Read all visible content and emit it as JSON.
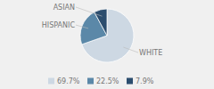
{
  "chart_data": {
    "type": "pie",
    "categories": [
      "WHITE",
      "HISPANIC",
      "ASIAN"
    ],
    "values": [
      69.7,
      22.5,
      7.9
    ],
    "value_labels": [
      "69.7%",
      "22.5%",
      "7.9%"
    ],
    "colors": [
      "#cdd8e3",
      "#5b88a8",
      "#2b4d6e"
    ],
    "legend": "bottom"
  }
}
